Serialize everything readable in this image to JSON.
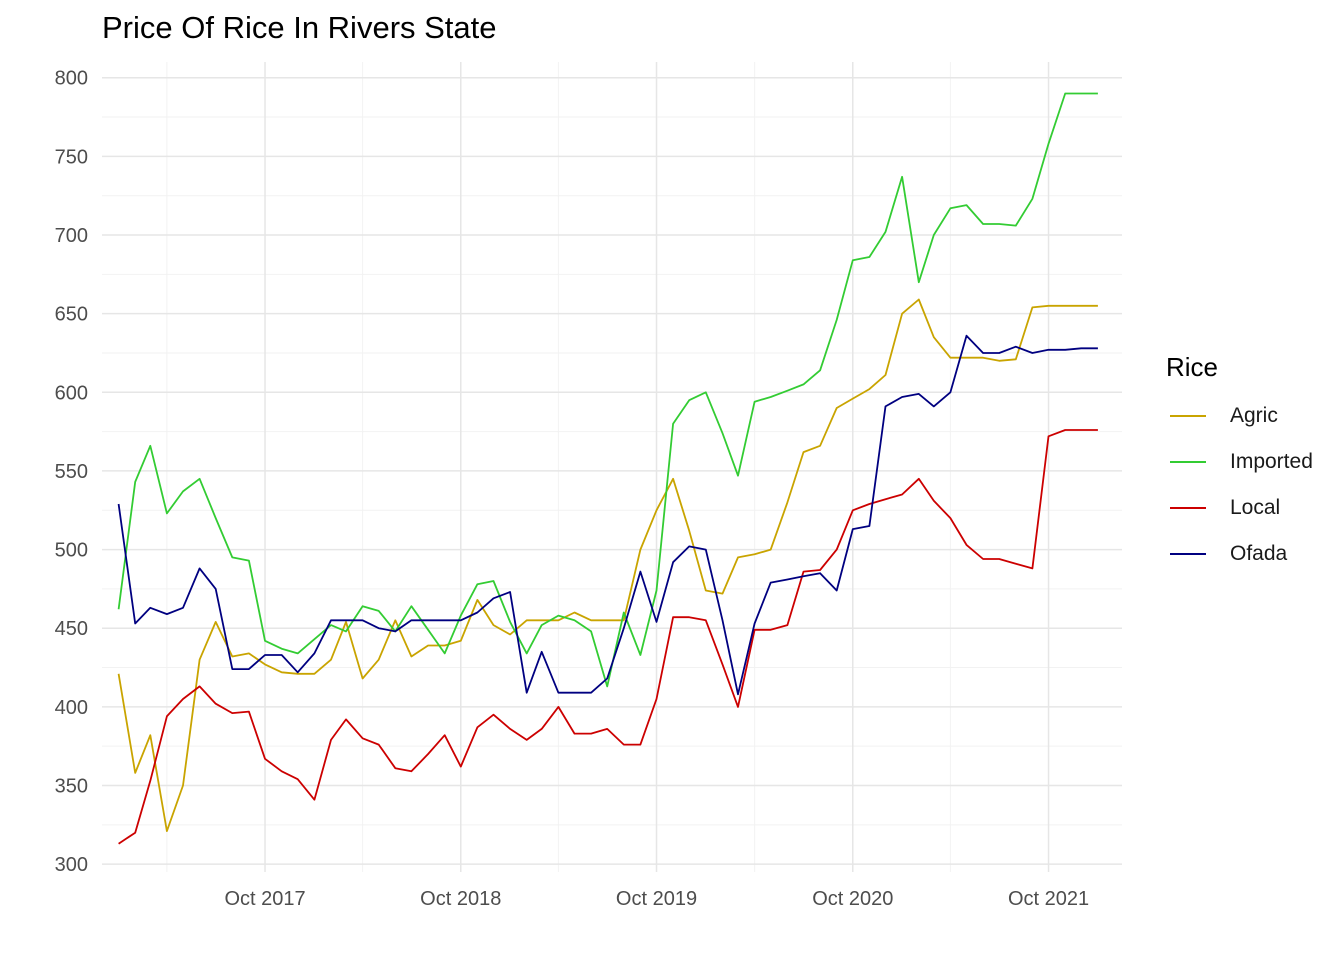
{
  "chart_data": {
    "type": "line",
    "title": "Price Of Rice In Rivers State",
    "xlabel": "",
    "ylabel": "",
    "ylim": [
      295,
      810
    ],
    "x_axis_type": "date",
    "xlim": [
      "2016-12-01",
      "2022-02-15"
    ],
    "y_ticks": [
      300,
      350,
      400,
      450,
      500,
      550,
      600,
      650,
      700,
      750,
      800
    ],
    "x_ticks": [
      {
        "date": "2017-10-01",
        "label": "Oct 2017"
      },
      {
        "date": "2018-10-01",
        "label": "Oct 2018"
      },
      {
        "date": "2019-10-01",
        "label": "Oct 2019"
      },
      {
        "date": "2020-10-01",
        "label": "Oct 2020"
      },
      {
        "date": "2021-10-01",
        "label": "Oct 2021"
      }
    ],
    "x_minor_ticks": [
      "2017-04-01",
      "2018-04-01",
      "2019-04-01",
      "2020-04-01",
      "2021-04-01"
    ],
    "grid": true,
    "legend_title": "Rice",
    "legend_position": "right",
    "x": [
      "2017-01-01",
      "2017-02-01",
      "2017-03-01",
      "2017-04-01",
      "2017-05-01",
      "2017-06-01",
      "2017-07-01",
      "2017-08-01",
      "2017-09-01",
      "2017-10-01",
      "2017-11-01",
      "2017-12-01",
      "2018-01-01",
      "2018-02-01",
      "2018-03-01",
      "2018-04-01",
      "2018-05-01",
      "2018-06-01",
      "2018-07-01",
      "2018-08-01",
      "2018-09-01",
      "2018-10-01",
      "2018-11-01",
      "2018-12-01",
      "2019-01-01",
      "2019-02-01",
      "2019-03-01",
      "2019-04-01",
      "2019-05-01",
      "2019-06-01",
      "2019-07-01",
      "2019-08-01",
      "2019-09-01",
      "2019-10-01",
      "2019-11-01",
      "2019-12-01",
      "2020-01-01",
      "2020-02-01",
      "2020-03-01",
      "2020-04-01",
      "2020-05-01",
      "2020-06-01",
      "2020-07-01",
      "2020-08-01",
      "2020-09-01",
      "2020-10-01",
      "2020-11-01",
      "2020-12-01",
      "2021-01-01",
      "2021-02-01",
      "2021-03-01",
      "2021-04-01",
      "2021-05-01",
      "2021-06-01",
      "2021-07-01",
      "2021-08-01",
      "2021-09-01",
      "2021-10-01",
      "2021-11-01",
      "2021-12-01",
      "2022-01-01"
    ],
    "series": [
      {
        "name": "Agric",
        "color": "#C9A400",
        "values": [
          421,
          358,
          382,
          321,
          350,
          430,
          454,
          432,
          434,
          427,
          422,
          421,
          421,
          430,
          454,
          418,
          430,
          455,
          432,
          439,
          439,
          442,
          468,
          452,
          446,
          455,
          455,
          455,
          460,
          455,
          455,
          455,
          500,
          525,
          545,
          512,
          474,
          472,
          495,
          497,
          500,
          530,
          562,
          566,
          590,
          596,
          602,
          611,
          650,
          659,
          635,
          622,
          622,
          622,
          620,
          621,
          654,
          655,
          655,
          655,
          655
        ]
      },
      {
        "name": "Imported",
        "color": "#33CC33",
        "values": [
          462,
          543,
          566,
          523,
          537,
          545,
          520,
          495,
          493,
          442,
          437,
          434,
          443,
          452,
          448,
          464,
          461,
          448,
          464,
          449,
          434,
          458,
          478,
          480,
          454,
          434,
          452,
          458,
          455,
          448,
          413,
          460,
          433,
          474,
          580,
          595,
          600,
          574,
          547,
          594,
          597,
          601,
          605,
          614,
          646,
          684,
          686,
          702,
          737,
          670,
          700,
          717,
          719,
          707,
          707,
          706,
          723,
          758,
          790,
          790,
          790
        ]
      },
      {
        "name": "Local",
        "color": "#CC0000",
        "values": [
          313,
          320,
          353,
          394,
          405,
          413,
          402,
          396,
          397,
          367,
          359,
          354,
          341,
          379,
          392,
          380,
          376,
          361,
          359,
          370,
          382,
          362,
          387,
          395,
          386,
          379,
          386,
          400,
          383,
          383,
          386,
          376,
          376,
          405,
          457,
          457,
          455,
          427,
          400,
          449,
          449,
          452,
          486,
          487,
          500,
          525,
          529,
          532,
          535,
          545,
          531,
          520,
          503,
          494,
          494,
          491,
          488,
          572,
          576,
          576,
          576
        ]
      },
      {
        "name": "Ofada",
        "color": "#000080",
        "values": [
          529,
          453,
          463,
          459,
          463,
          488,
          475,
          424,
          424,
          433,
          433,
          422,
          434,
          455,
          455,
          455,
          450,
          448,
          455,
          455,
          455,
          455,
          460,
          469,
          473,
          409,
          435,
          409,
          409,
          409,
          418,
          450,
          486,
          454,
          492,
          502,
          500,
          455,
          408,
          453,
          479,
          481,
          483,
          485,
          474,
          513,
          515,
          591,
          597,
          599,
          591,
          600,
          636,
          625,
          625,
          629,
          625,
          627,
          627,
          628,
          628
        ]
      }
    ]
  }
}
